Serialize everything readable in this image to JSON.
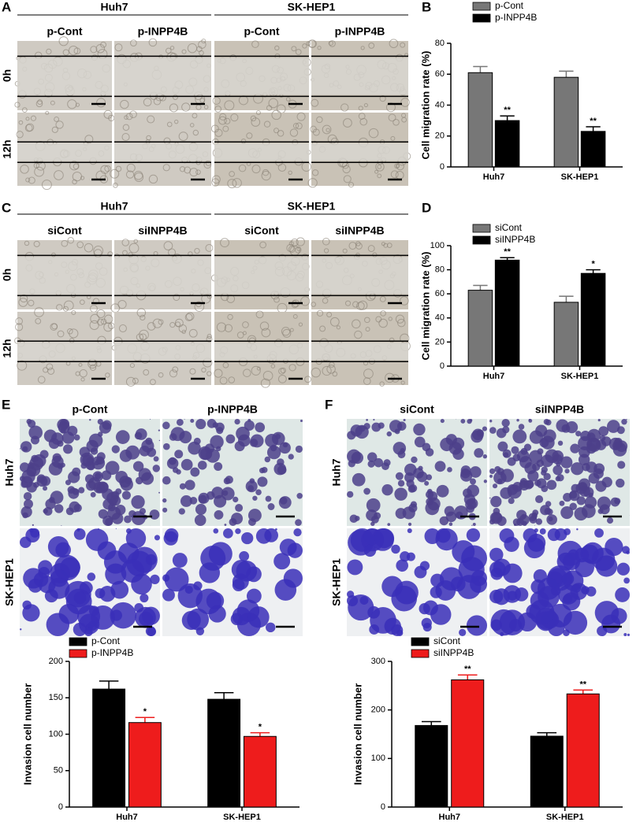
{
  "panel_labels": [
    "A",
    "B",
    "C",
    "D",
    "E",
    "F"
  ],
  "migration_images": [
    {
      "groups": [
        "Huh7",
        "SK-HEP1"
      ],
      "conditions": [
        "p-Cont",
        "p-INPP4B",
        "p-Cont",
        "p-INPP4B"
      ],
      "timepoints": [
        "0h",
        "12h"
      ]
    },
    {
      "groups": [
        "Huh7",
        "SK-HEP1"
      ],
      "conditions": [
        "siCont",
        "siINPP4B",
        "siCont",
        "siINPP4B"
      ],
      "timepoints": [
        "0h",
        "12h"
      ]
    }
  ],
  "invasion_images": [
    {
      "conditions": [
        "p-Cont",
        "p-INPP4B"
      ],
      "cell_lines": [
        "Huh7",
        "SK-HEP1"
      ]
    },
    {
      "conditions": [
        "siCont",
        "siINPP4B"
      ],
      "cell_lines": [
        "Huh7",
        "SK-HEP1"
      ]
    }
  ],
  "chart_data": [
    {
      "type": "bar",
      "y_label": "Cell migration rate (%)",
      "categories": [
        "Huh7",
        "SK-HEP1"
      ],
      "series": [
        {
          "name": "p-Cont",
          "color": "#777777",
          "values": [
            61,
            58
          ],
          "errors": [
            4,
            4
          ]
        },
        {
          "name": "p-INPP4B",
          "color": "#000000",
          "values": [
            30,
            23
          ],
          "errors": [
            3,
            3
          ],
          "annotations": [
            "**",
            "**"
          ]
        }
      ],
      "ylim": [
        0,
        80
      ],
      "yticks": [
        0,
        20,
        40,
        60,
        80
      ]
    },
    {
      "type": "bar",
      "y_label": "Cell migration rate (%)",
      "categories": [
        "Huh7",
        "SK-HEP1"
      ],
      "series": [
        {
          "name": "siCont",
          "color": "#777777",
          "values": [
            63,
            53
          ],
          "errors": [
            4,
            5
          ]
        },
        {
          "name": "siINPP4B",
          "color": "#000000",
          "values": [
            88,
            77
          ],
          "errors": [
            2,
            3
          ],
          "annotations": [
            "**",
            "*"
          ]
        }
      ],
      "ylim": [
        0,
        100
      ],
      "yticks": [
        0,
        20,
        40,
        60,
        80,
        100
      ]
    },
    {
      "type": "bar",
      "y_label": "Invasion cell number",
      "categories": [
        "Huh7",
        "SK-HEP1"
      ],
      "series": [
        {
          "name": "p-Cont",
          "color": "#000000",
          "values": [
            162,
            148
          ],
          "errors": [
            11,
            9
          ]
        },
        {
          "name": "p-INPP4B",
          "color": "#ee1c1c",
          "values": [
            116,
            97
          ],
          "errors": [
            7,
            5
          ],
          "annotations": [
            "*",
            "*"
          ]
        }
      ],
      "ylim": [
        0,
        200
      ],
      "yticks": [
        0,
        50,
        100,
        150,
        200
      ]
    },
    {
      "type": "bar",
      "y_label": "Invasion cell number",
      "categories": [
        "Huh7",
        "SK-HEP1"
      ],
      "series": [
        {
          "name": "siCont",
          "color": "#000000",
          "values": [
            168,
            146
          ],
          "errors": [
            8,
            7
          ]
        },
        {
          "name": "siINPP4B",
          "color": "#ee1c1c",
          "values": [
            262,
            233
          ],
          "errors": [
            10,
            8
          ],
          "annotations": [
            "**",
            "**"
          ]
        }
      ],
      "ylim": [
        0,
        300
      ],
      "yticks": [
        0,
        100,
        200,
        300
      ]
    }
  ]
}
